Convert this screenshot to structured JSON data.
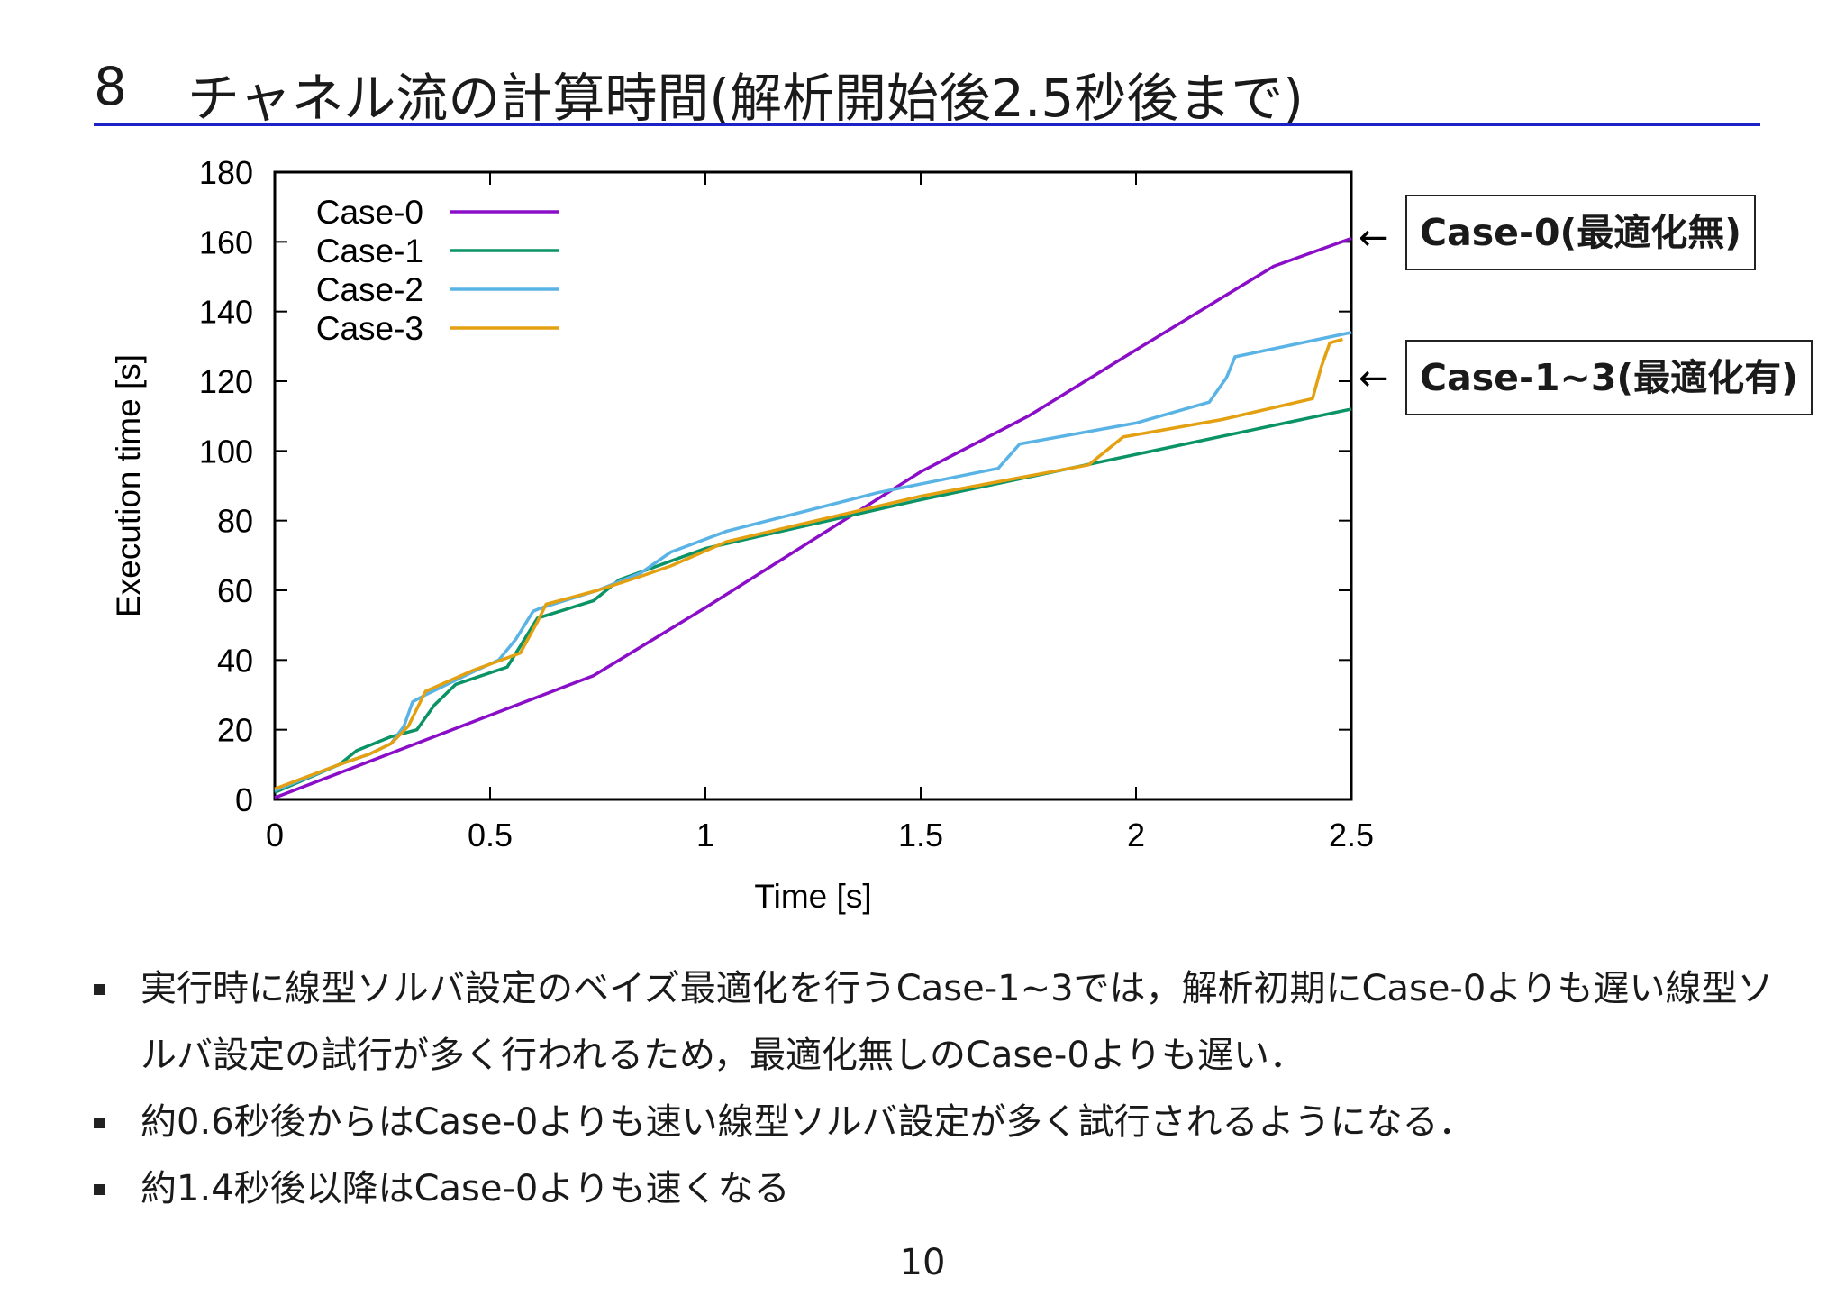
{
  "slide": {
    "number": "8",
    "title": "チャネル流の計算時間(解析開始後2.5秒後まで)",
    "page_number": "10"
  },
  "callouts": [
    {
      "text": "Case-0(最適化無)",
      "arrow": "←"
    },
    {
      "text": "Case-1∼3(最適化有)",
      "arrow": "←"
    }
  ],
  "bullets": [
    "実行時に線型ソルバ設定のベイズ最適化を行うCase-1∼3では，解析初期にCase-0よりも遅い線型ソルバ設定の試行が多く行われるため，最適化無しのCase-0よりも遅い．",
    "約0.6秒後からはCase-0よりも速い線型ソルバ設定が多く試行されるようになる．",
    "約1.4秒後以降はCase-0よりも速くなる"
  ],
  "colors": {
    "title_rule": "#1d22c8",
    "case0": "#8a0ec8",
    "case1": "#0a9366",
    "case2": "#5ab3e5",
    "case3": "#e3a112"
  },
  "chart_data": {
    "type": "line",
    "xlabel": "Time [s]",
    "ylabel": "Execution time [s]",
    "xlim": [
      0,
      2.5
    ],
    "ylim": [
      0,
      180
    ],
    "xticks": [
      0,
      0.5,
      1,
      1.5,
      2,
      2.5
    ],
    "xtick_labels": [
      "0",
      "0.5",
      "1",
      "1.5",
      "2",
      "2.5"
    ],
    "yticks": [
      0,
      20,
      40,
      60,
      80,
      100,
      120,
      140,
      160,
      180
    ],
    "ytick_labels": [
      "0",
      "20",
      "40",
      "60",
      "80",
      "100",
      "120",
      "140",
      "160",
      "180"
    ],
    "grid": false,
    "legend_position": "top-left",
    "series": [
      {
        "name": "Case-0",
        "color": "#8a0ec8",
        "x": [
          0,
          0.74,
          1.0,
          1.5,
          1.75,
          2.0,
          2.32,
          2.5
        ],
        "y": [
          0.5,
          35.5,
          55,
          94,
          110,
          129,
          153,
          161
        ]
      },
      {
        "name": "Case-1",
        "color": "#0a9366",
        "x": [
          0,
          0.15,
          0.19,
          0.27,
          0.33,
          0.37,
          0.42,
          0.54,
          0.57,
          0.61,
          0.74,
          0.8,
          1.0,
          1.5,
          2.0,
          2.5
        ],
        "y": [
          2,
          10,
          14,
          18,
          20,
          27,
          33,
          38,
          44,
          52,
          57,
          63,
          72,
          86,
          99,
          112
        ]
      },
      {
        "name": "Case-2",
        "color": "#5ab3e5",
        "x": [
          0,
          0.15,
          0.22,
          0.27,
          0.3,
          0.32,
          0.35,
          0.45,
          0.52,
          0.56,
          0.6,
          0.62,
          0.75,
          0.85,
          0.92,
          1.05,
          1.4,
          1.68,
          1.73,
          2.0,
          2.17,
          2.21,
          2.23,
          2.5
        ],
        "y": [
          2.5,
          10,
          13,
          16,
          21,
          28,
          30,
          36,
          40,
          46,
          54,
          55,
          60,
          65,
          71,
          77,
          88,
          95,
          102,
          108,
          114,
          121,
          127,
          134
        ]
      },
      {
        "name": "Case-3",
        "color": "#e3a112",
        "x": [
          0,
          0.15,
          0.22,
          0.27,
          0.31,
          0.35,
          0.46,
          0.57,
          0.61,
          0.63,
          0.75,
          0.85,
          0.92,
          1.05,
          1.5,
          1.89,
          1.97,
          2.2,
          2.41,
          2.43,
          2.45,
          2.48
        ],
        "y": [
          3,
          10,
          13,
          16,
          21,
          31,
          37,
          42,
          51,
          56,
          60,
          64,
          67,
          74,
          87,
          96,
          104,
          109,
          115,
          124,
          131,
          132
        ]
      }
    ]
  }
}
